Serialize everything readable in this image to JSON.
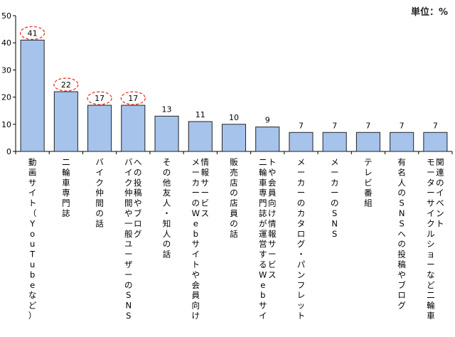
{
  "unit_label": "単位：%",
  "chart_data": {
    "type": "bar",
    "title": "",
    "xlabel": "",
    "ylabel": "",
    "ylim": [
      0,
      50
    ],
    "yticks": [
      0,
      10,
      20,
      30,
      40,
      50
    ],
    "grid": false,
    "bar_color": "#a6c3eb",
    "bar_edge_color": "#222222",
    "highlight_color": "#e8362c",
    "highlighted_indices": [
      0,
      1,
      2,
      3
    ],
    "categories": [
      "動画サイト（YouTubeなど）",
      "二輪車専門誌",
      "バイク仲間の話",
      "バイク仲間や一般ユーザーのSNSへの投稿やブログ",
      "その他友人・知人の話",
      "メーカーのWebサイトや会員向け情報サービス",
      "販売店の店員の話",
      "二輪車専門誌が運営するWebサイトや会員向け情報サービス",
      "メーカーのカタログ・パンフレット",
      "メーカーのSNS",
      "テレビ番組",
      "有名人のSNSへの投稿やブログ",
      "モーターサイクルショーなど二輪車関連のイベント"
    ],
    "values": [
      41,
      22,
      17,
      17,
      13,
      11,
      10,
      9,
      7,
      7,
      7,
      7,
      7
    ]
  }
}
